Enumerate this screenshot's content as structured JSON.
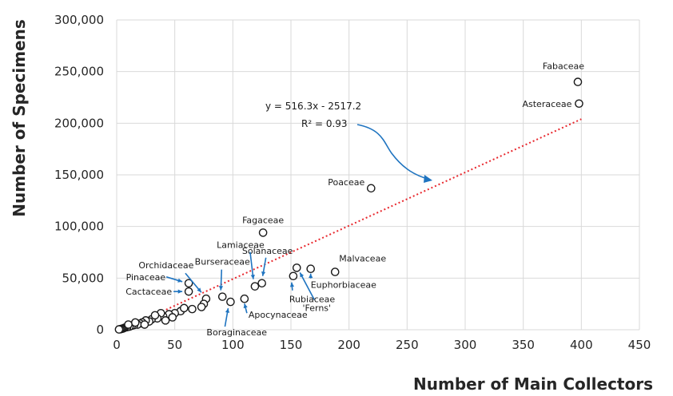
{
  "chart_data": {
    "type": "scatter",
    "title": "",
    "xlabel": "Number of Main Collectors",
    "ylabel": "Number of Specimens",
    "xlim": [
      0,
      450
    ],
    "ylim": [
      0,
      300000
    ],
    "x_ticks": [
      0,
      50,
      100,
      150,
      200,
      250,
      300,
      350,
      400,
      450
    ],
    "y_ticks": [
      0,
      50000,
      100000,
      150000,
      200000,
      250000,
      300000
    ],
    "x_tick_labels": [
      "0",
      "50",
      "100",
      "150",
      "200",
      "250",
      "300",
      "350",
      "400",
      "450"
    ],
    "y_tick_labels": [
      "0",
      "50,000",
      "100,000",
      "150,000",
      "200,000",
      "250,000",
      "300,000"
    ],
    "grid": true,
    "trendline": {
      "type": "linear",
      "slope": 516.3,
      "intercept": -2517.2,
      "x_range": [
        5,
        400
      ],
      "equation_label": "y = 516.3x - 2517.2",
      "r2_label": "R² = 0.93",
      "color": "#e8282e"
    },
    "series": [
      {
        "color": "#1a1a1a",
        "points": [
          {
            "x": 397,
            "y": 240000,
            "label": "Fabaceae"
          },
          {
            "x": 398,
            "y": 219000,
            "label": "Asteraceae"
          },
          {
            "x": 219,
            "y": 137000,
            "label": "Poaceae"
          },
          {
            "x": 126,
            "y": 94000,
            "label": "Fagaceae"
          },
          {
            "x": 188,
            "y": 56000,
            "label": "Malvaceae"
          },
          {
            "x": 167,
            "y": 59000,
            "label": "Euphorbiaceae"
          },
          {
            "x": 155,
            "y": 60000,
            "label": "'Ferns'"
          },
          {
            "x": 152,
            "y": 52000,
            "label": "Rubiaceae"
          },
          {
            "x": 125,
            "y": 45000,
            "label": "Solanaceae"
          },
          {
            "x": 119,
            "y": 42000,
            "label": "Lamiaceae"
          },
          {
            "x": 110,
            "y": 30000,
            "label": "Apocynaceae"
          },
          {
            "x": 98,
            "y": 27000,
            "label": "Boraginaceae"
          },
          {
            "x": 91,
            "y": 32000,
            "label": "Burseraceae"
          },
          {
            "x": 77,
            "y": 30000,
            "label": "Orchidaceae"
          },
          {
            "x": 62,
            "y": 45000,
            "label": "Pinaceae"
          },
          {
            "x": 62,
            "y": 37000,
            "label": "Cactaceae"
          },
          {
            "x": 75,
            "y": 25000
          },
          {
            "x": 73,
            "y": 22000
          },
          {
            "x": 65,
            "y": 20000
          },
          {
            "x": 55,
            "y": 18000
          },
          {
            "x": 50,
            "y": 16000
          },
          {
            "x": 45,
            "y": 15000
          },
          {
            "x": 40,
            "y": 13000
          },
          {
            "x": 38,
            "y": 16000
          },
          {
            "x": 35,
            "y": 11000
          },
          {
            "x": 30,
            "y": 10000
          },
          {
            "x": 28,
            "y": 8000
          },
          {
            "x": 25,
            "y": 9000
          },
          {
            "x": 22,
            "y": 7000
          },
          {
            "x": 20,
            "y": 6000
          },
          {
            "x": 18,
            "y": 5000
          },
          {
            "x": 15,
            "y": 4500
          },
          {
            "x": 13,
            "y": 4000
          },
          {
            "x": 11,
            "y": 3000
          },
          {
            "x": 9,
            "y": 2500
          },
          {
            "x": 7,
            "y": 2000
          },
          {
            "x": 6,
            "y": 1500
          },
          {
            "x": 5,
            "y": 1000
          },
          {
            "x": 4,
            "y": 800
          },
          {
            "x": 3,
            "y": 500
          },
          {
            "x": 2,
            "y": 300
          },
          {
            "x": 48,
            "y": 12000
          },
          {
            "x": 42,
            "y": 9000
          },
          {
            "x": 33,
            "y": 14000
          },
          {
            "x": 58,
            "y": 21000
          },
          {
            "x": 24,
            "y": 5000
          },
          {
            "x": 16,
            "y": 7000
          },
          {
            "x": 10,
            "y": 5000
          }
        ]
      }
    ]
  }
}
